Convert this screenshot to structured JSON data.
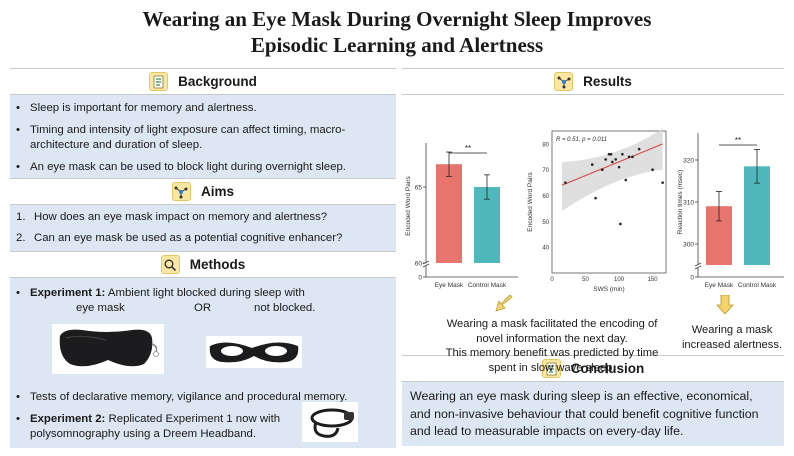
{
  "title": {
    "line1": "Wearing an Eye Mask During Overnight Sleep Improves",
    "line2": "Episodic Learning and Alertness"
  },
  "background": {
    "heading": "Background",
    "icon": "document-icon",
    "bullets": [
      "Sleep is important for memory and alertness.",
      "Timing and intensity of light exposure can affect timing, macro-architecture and duration of sleep.",
      "An eye mask can be used to block light during overnight sleep."
    ]
  },
  "aims": {
    "heading": "Aims",
    "icon": "network-icon",
    "items": [
      {
        "num": "1.",
        "text": "How does an eye mask impact on memory and alertness?"
      },
      {
        "num": "2.",
        "text": "Can an eye mask be used as a potential cognitive enhancer?"
      }
    ]
  },
  "methods": {
    "heading": "Methods",
    "icon": "magnifier-icon",
    "exp1_label": "Experiment 1:",
    "exp1_text": " Ambient light blocked during sleep with",
    "opt_a": "eye mask",
    "opt_or": "OR",
    "opt_b": "not blocked.",
    "tests": "Tests of declarative memory, vigilance and procedural memory.",
    "exp2_label": "Experiment 2:",
    "exp2_text": " Replicated Experiment  1 now with polysomnography using a Dreem Headband."
  },
  "results": {
    "heading": "Results",
    "icon": "network-icon",
    "caption1": [
      "Wearing a mask facilitated the encoding of",
      "novel information the next day.",
      "This memory benefit was predicted by time",
      "spent in slow wave sleep."
    ],
    "caption2": [
      "Wearing a mask",
      "increased alertness."
    ]
  },
  "conclusion": {
    "heading": "Conclusion",
    "icon": "document-icon",
    "text": "Wearing an eye mask during sleep is an effective, economical, and non-invasive behaviour that could benefit cognitive function and lead to measurable impacts on every-day life."
  },
  "colors": {
    "eye_mask": "#e8756d",
    "control_mask": "#4fb8bd",
    "panel": "#dde7f3",
    "accent_icon": "#fbe7a2",
    "arrow": "#f3d36a",
    "regression": "#d9534f"
  },
  "chart_data": [
    {
      "type": "bar",
      "categories": [
        "Eye Mask",
        "Control Mask"
      ],
      "values": [
        66.5,
        65.0
      ],
      "error": [
        0.8,
        0.8
      ],
      "ylabel": "Encoded Word Pairs",
      "ylim": [
        60,
        67.5
      ],
      "ticks": [
        0,
        60,
        65
      ],
      "axis_break": true,
      "significance": "**"
    },
    {
      "type": "scatter",
      "xlabel": "SWS (min)",
      "ylabel": "Encoded Word Pairs",
      "xlim": [
        0,
        170
      ],
      "ylim": [
        30,
        85
      ],
      "xticks": [
        0,
        50,
        100,
        150
      ],
      "yticks": [
        40,
        50,
        60,
        70,
        80
      ],
      "annotation": "R = 0.51, p = 0.011",
      "x": [
        20,
        60,
        65,
        75,
        80,
        85,
        88,
        90,
        95,
        100,
        102,
        105,
        110,
        115,
        120,
        130,
        150,
        165
      ],
      "y": [
        65,
        72,
        59,
        70,
        74,
        76,
        76,
        73,
        74,
        71,
        49,
        76,
        66,
        75,
        75,
        78,
        70,
        65
      ],
      "trend": {
        "x": [
          15,
          165
        ],
        "y": [
          64,
          80
        ]
      }
    },
    {
      "type": "bar",
      "categories": [
        "Eye Mask",
        "Control Mask"
      ],
      "values": [
        309,
        318.5
      ],
      "error": [
        3.5,
        4
      ],
      "ylabel": "Reaction times (msec)",
      "ylim": [
        295,
        325
      ],
      "ticks": [
        0,
        300,
        310,
        320
      ],
      "axis_break": true,
      "significance": "**"
    }
  ]
}
